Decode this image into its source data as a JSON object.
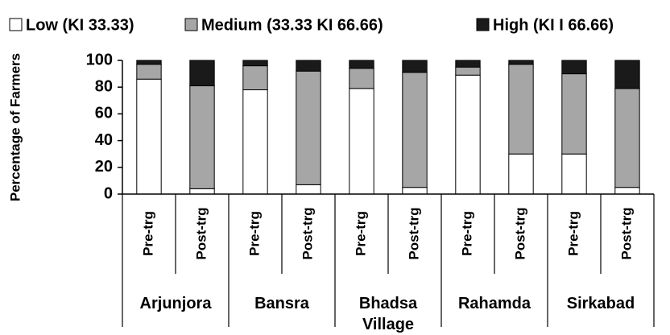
{
  "chart_data": {
    "type": "stacked-bar",
    "y_label": "Percentage of Farmers",
    "categories": [
      "Pre-trg",
      "Post-trg",
      "Pre-trg",
      "Post-trg",
      "Pre-trg",
      "Post-trg",
      "Pre-trg",
      "Post-trg",
      "Pre-trg",
      "Post-trg"
    ],
    "groups": [
      "Arjunjora",
      "Bansra",
      "Bhadsa Village",
      "Rahamda",
      "Sirkabad"
    ],
    "series": [
      {
        "name": "Low (KI 33.33)",
        "color": "#ffffff",
        "values": [
          86,
          4,
          78,
          7,
          79,
          5,
          89,
          30,
          30,
          5
        ]
      },
      {
        "name": "Medium (33.33 KI 66.66)",
        "color": "#a6a6a6",
        "values": [
          11,
          77,
          18,
          85,
          15,
          86,
          6,
          67,
          60,
          74
        ]
      },
      {
        "name": "High (KI I 66.66)",
        "color": "#1a1a1a",
        "values": [
          3,
          19,
          4,
          8,
          6,
          9,
          5,
          3,
          10,
          21
        ]
      }
    ],
    "ylim": [
      0,
      100
    ],
    "yticks": [
      0,
      20,
      40,
      60,
      80,
      100
    ]
  }
}
